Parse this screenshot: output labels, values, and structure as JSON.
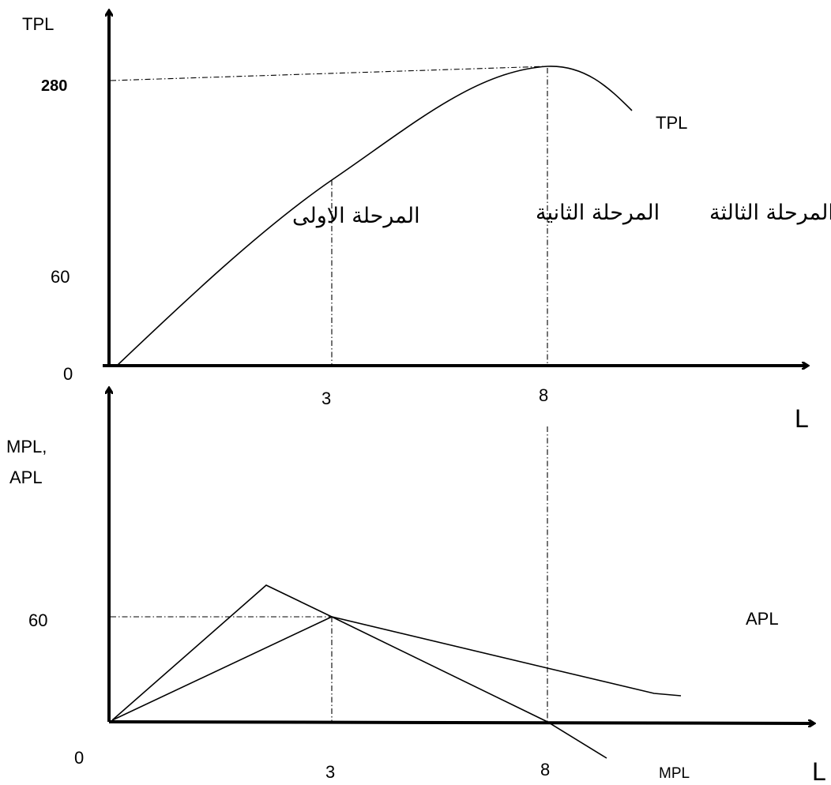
{
  "top_panel": {
    "y_axis_label": "TPL",
    "x_axis_label": "L",
    "y_ticks": {
      "max": "280",
      "mid": "60",
      "origin": "0"
    },
    "x_ticks": {
      "stage_boundary_1": "3",
      "stage_boundary_2": "8"
    },
    "curve_label": "TPL",
    "stages": {
      "first": "المرحلة الاولى",
      "second": "المرحلة الثانية",
      "third": "المرحلة الثالثة"
    }
  },
  "bottom_panel": {
    "y_axis_label_line1": "MPL,",
    "y_axis_label_line2": "APL",
    "x_axis_label": "L",
    "y_ticks": {
      "mid": "60",
      "origin": "0"
    },
    "x_ticks": {
      "stage_boundary_1": "3",
      "stage_boundary_2": "8"
    },
    "apl_label": "APL",
    "mpl_label": "MPL"
  }
}
